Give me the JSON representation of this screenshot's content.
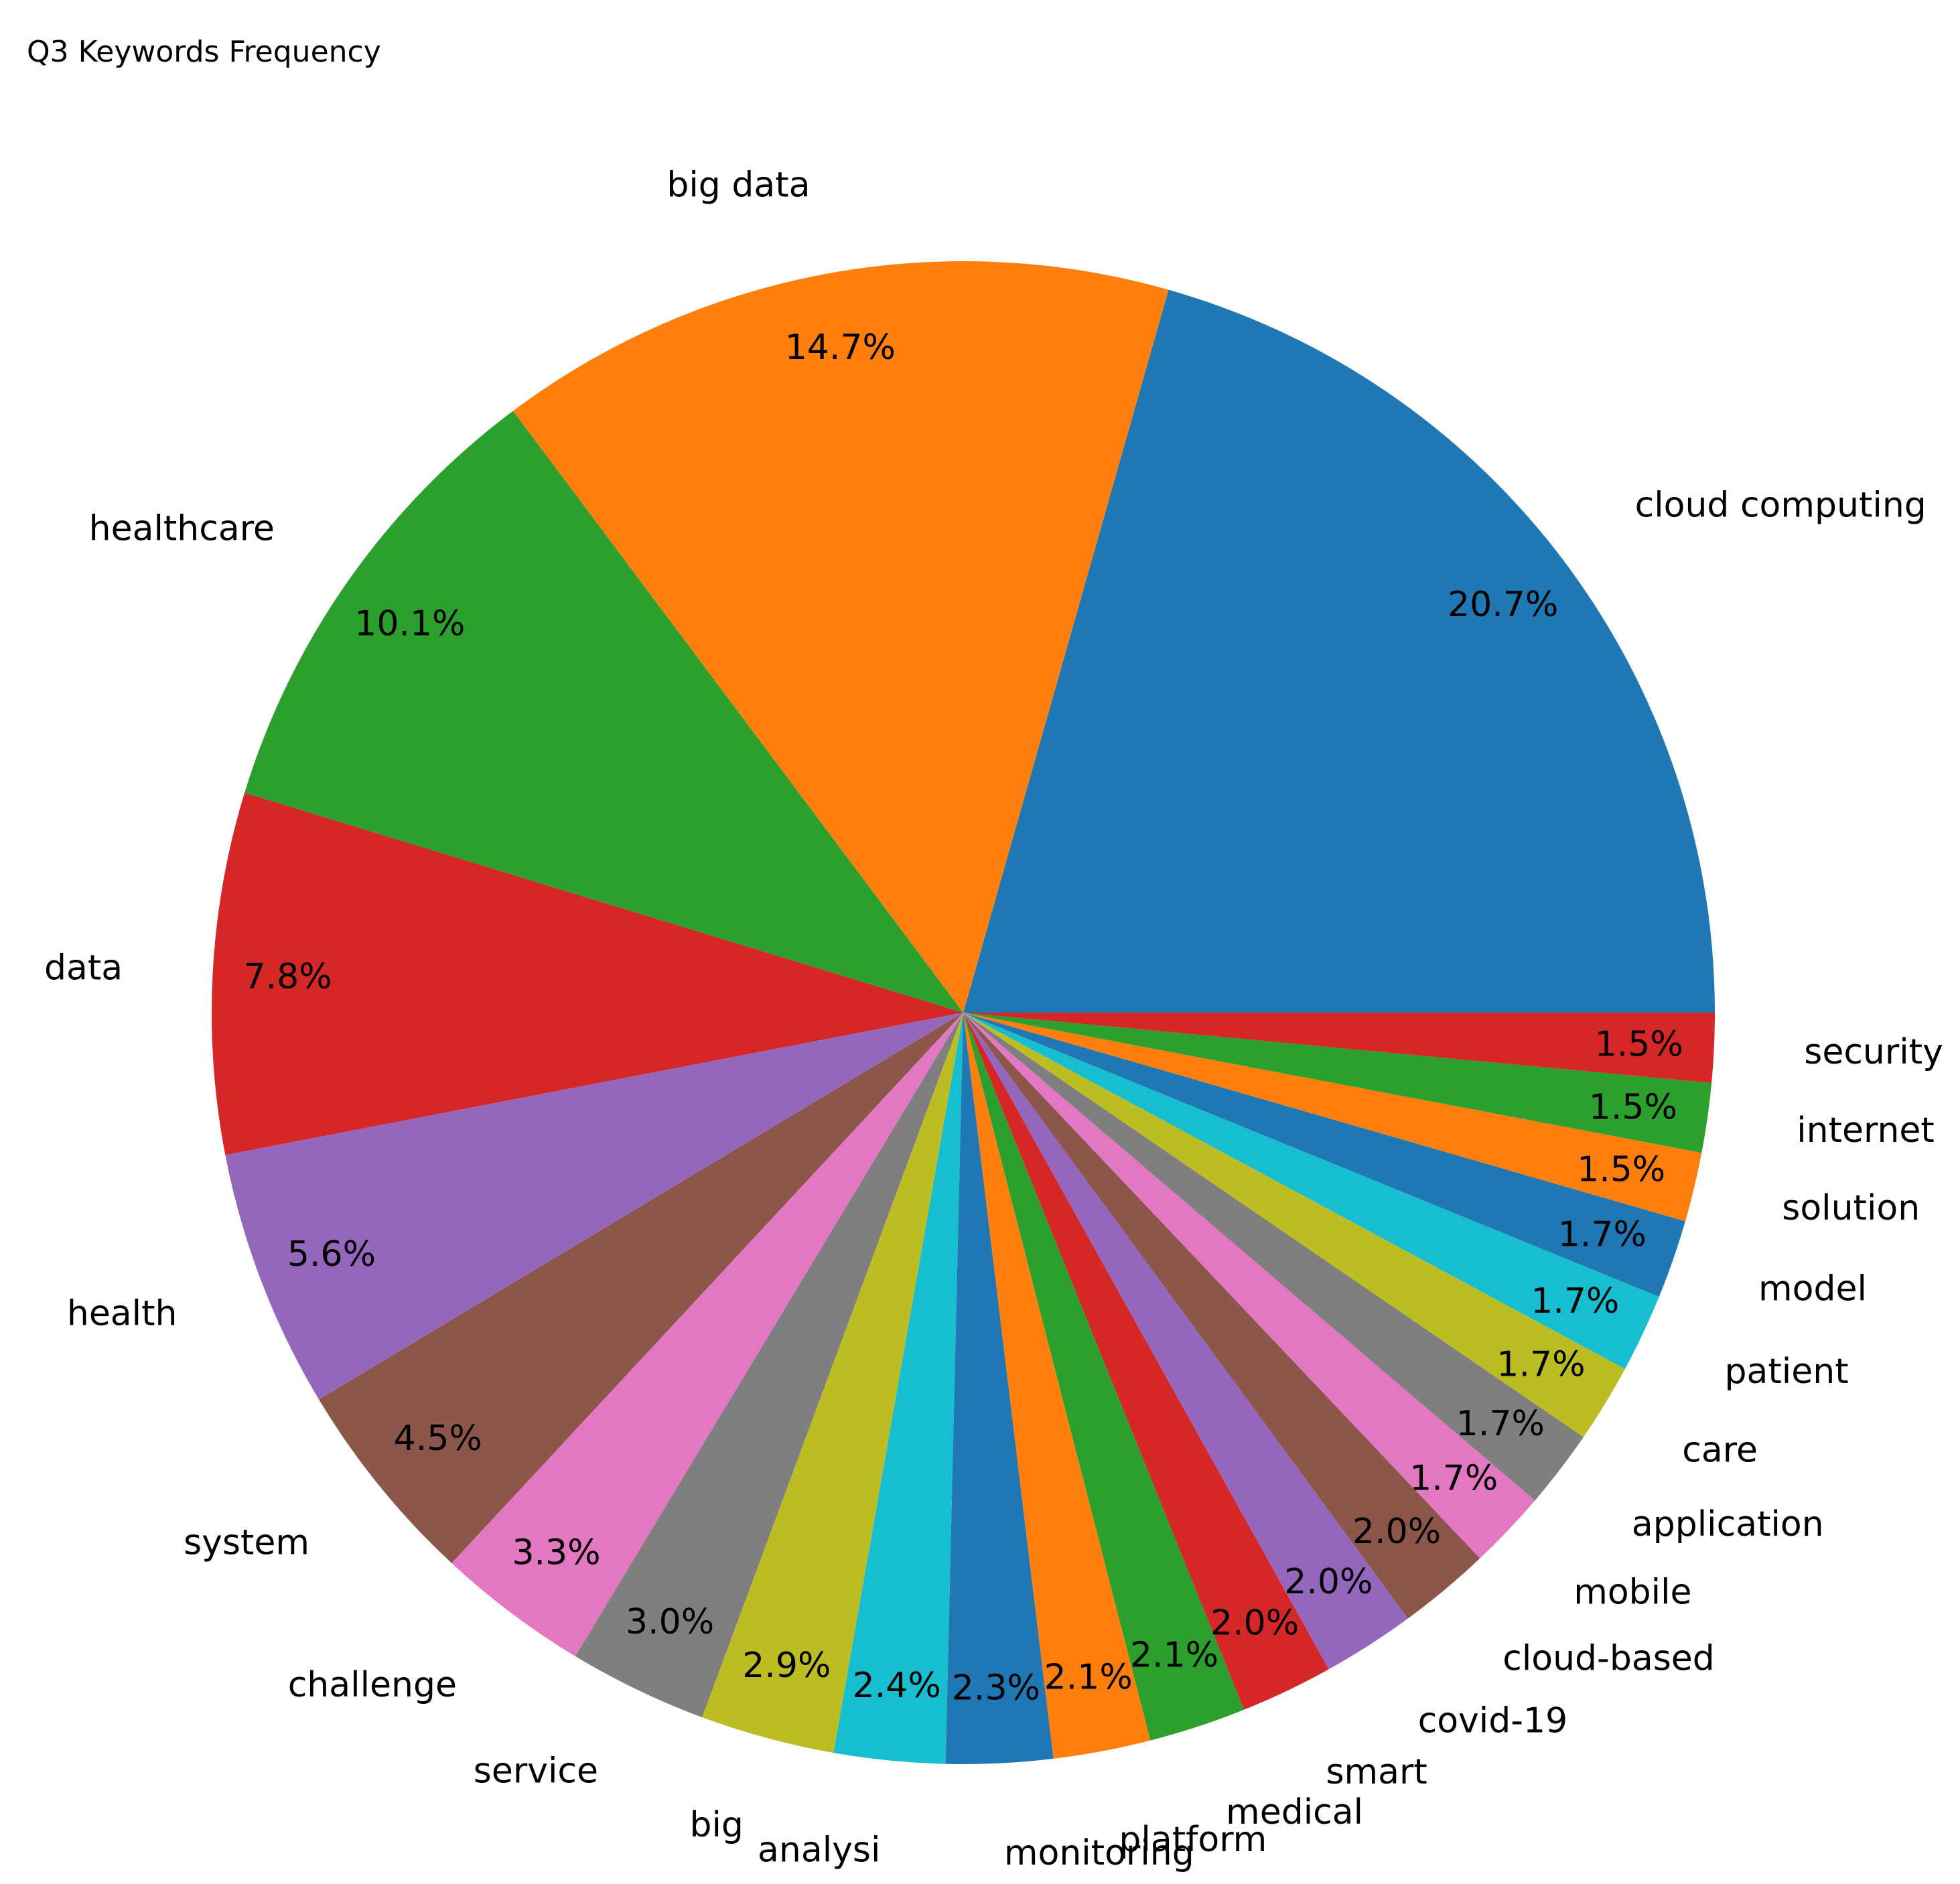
{
  "chart_data": {
    "type": "pie",
    "title": "Q3 Keywords Frequency",
    "slices": [
      {
        "label": "cloud computing",
        "value": 20.7,
        "pct_label": "20.7%",
        "color": "#1f77b4"
      },
      {
        "label": "big data",
        "value": 14.7,
        "pct_label": "14.7%",
        "color": "#ff7f0e"
      },
      {
        "label": "healthcare",
        "value": 10.1,
        "pct_label": "10.1%",
        "color": "#2ca02c"
      },
      {
        "label": "data",
        "value": 7.8,
        "pct_label": "7.8%",
        "color": "#d62728"
      },
      {
        "label": "health",
        "value": 5.6,
        "pct_label": "5.6%",
        "color": "#9467bd"
      },
      {
        "label": "system",
        "value": 4.5,
        "pct_label": "4.5%",
        "color": "#8c564b"
      },
      {
        "label": "challenge",
        "value": 3.3,
        "pct_label": "3.3%",
        "color": "#e377c2"
      },
      {
        "label": "service",
        "value": 3.0,
        "pct_label": "3.0%",
        "color": "#7f7f7f"
      },
      {
        "label": "big",
        "value": 2.9,
        "pct_label": "2.9%",
        "color": "#bcbd22"
      },
      {
        "label": "analysi",
        "value": 2.4,
        "pct_label": "2.4%",
        "color": "#17becf"
      },
      {
        "label": "monitoring",
        "value": 2.3,
        "pct_label": "2.3%",
        "color": "#1f77b4"
      },
      {
        "label": "platform",
        "value": 2.1,
        "pct_label": "2.1%",
        "color": "#ff7f0e"
      },
      {
        "label": "medical",
        "value": 2.1,
        "pct_label": "2.1%",
        "color": "#2ca02c"
      },
      {
        "label": "smart",
        "value": 2.0,
        "pct_label": "2.0%",
        "color": "#d62728"
      },
      {
        "label": "covid-19",
        "value": 2.0,
        "pct_label": "2.0%",
        "color": "#9467bd"
      },
      {
        "label": "cloud-based",
        "value": 2.0,
        "pct_label": "2.0%",
        "color": "#8c564b"
      },
      {
        "label": "mobile",
        "value": 1.7,
        "pct_label": "1.7%",
        "color": "#e377c2"
      },
      {
        "label": "application",
        "value": 1.7,
        "pct_label": "1.7%",
        "color": "#7f7f7f"
      },
      {
        "label": "care",
        "value": 1.7,
        "pct_label": "1.7%",
        "color": "#bcbd22"
      },
      {
        "label": "patient",
        "value": 1.7,
        "pct_label": "1.7%",
        "color": "#17becf"
      },
      {
        "label": "model",
        "value": 1.7,
        "pct_label": "1.7%",
        "color": "#1f77b4"
      },
      {
        "label": "solution",
        "value": 1.5,
        "pct_label": "1.5%",
        "color": "#ff7f0e"
      },
      {
        "label": "internet",
        "value": 1.5,
        "pct_label": "1.5%",
        "color": "#2ca02c"
      },
      {
        "label": "security",
        "value": 1.5,
        "pct_label": "1.5%",
        "color": "#d62728"
      }
    ],
    "start_angle_deg": 0,
    "direction": "counterclockwise"
  }
}
